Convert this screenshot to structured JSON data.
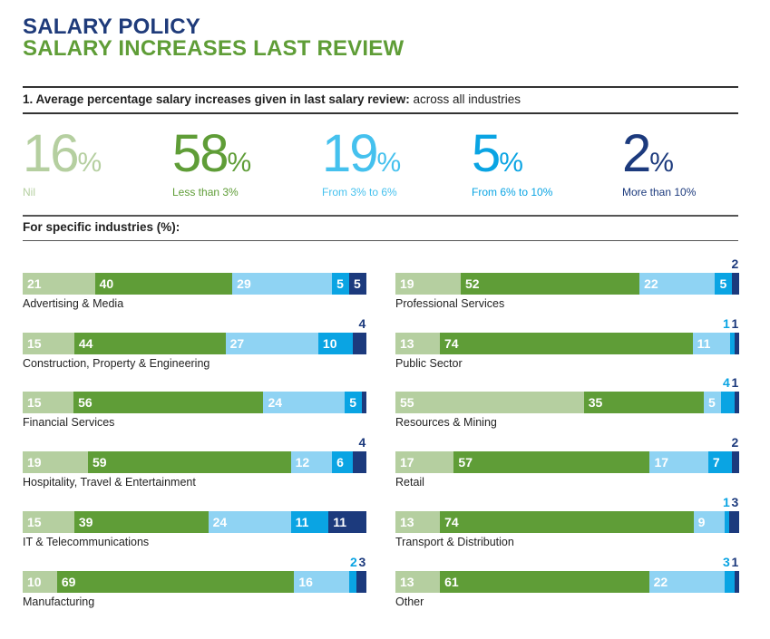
{
  "header": {
    "title": "SALARY POLICY",
    "subtitle": "SALARY INCREASES LAST REVIEW"
  },
  "question": {
    "bold": "1.  Average percentage salary increases given in last salary review:",
    "normal": " across all industries"
  },
  "colors": {
    "nil": "#b5cfa0",
    "lt3": "#5f9d37",
    "3to6": "#8fd3f3",
    "6to10": "#0aa4e3",
    "gt10": "#1c3a7d"
  },
  "summary": [
    {
      "value": "16",
      "unit": "%",
      "label": "Nil",
      "color": "#b5cfa0"
    },
    {
      "value": "58",
      "unit": "%",
      "label": "Less than 3%",
      "color": "#5f9d37"
    },
    {
      "value": "19",
      "unit": "%",
      "label": "From 3% to 6%",
      "color": "#45c1ee"
    },
    {
      "value": "5",
      "unit": "%",
      "label": "From 6% to 10%",
      "color": "#0aa4e3"
    },
    {
      "value": "2",
      "unit": "%",
      "label": "More than 10%",
      "color": "#1c3a7d"
    }
  ],
  "industries_heading": "For specific industries (%):",
  "chart_data": {
    "type": "bar",
    "orientation": "horizontal-stacked-100",
    "title": "For specific industries (%)",
    "series_names": [
      "Nil",
      "Less than 3%",
      "From 3% to 6%",
      "From 6% to 10%",
      "More than 10%"
    ],
    "categories": [
      "Advertising & Media",
      "Construction, Property & Engineering",
      "Financial Services",
      "Hospitality, Travel & Entertainment",
      "IT & Telecommunications",
      "Manufacturing",
      "Professional Services",
      "Public Sector",
      "Resources & Mining",
      "Retail",
      "Transport & Distribution",
      "Other"
    ],
    "values": [
      [
        21,
        40,
        29,
        5,
        5
      ],
      [
        15,
        44,
        27,
        10,
        4
      ],
      [
        15,
        56,
        24,
        5,
        0
      ],
      [
        19,
        59,
        12,
        6,
        4
      ],
      [
        15,
        39,
        24,
        11,
        11
      ],
      [
        10,
        69,
        16,
        2,
        3
      ],
      [
        19,
        52,
        22,
        5,
        2
      ],
      [
        13,
        74,
        11,
        1,
        1
      ],
      [
        55,
        35,
        5,
        4,
        1
      ],
      [
        17,
        57,
        17,
        7,
        2
      ],
      [
        13,
        74,
        9,
        1,
        3
      ],
      [
        13,
        61,
        22,
        3,
        1
      ]
    ],
    "summary_values": [
      16,
      58,
      19,
      5,
      2
    ],
    "xlim": [
      0,
      100
    ]
  }
}
